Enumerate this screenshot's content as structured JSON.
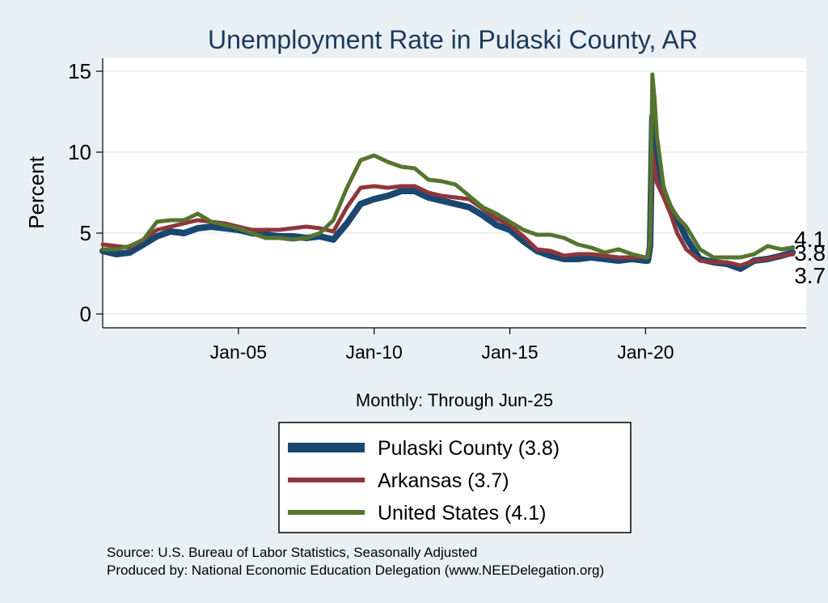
{
  "chart_data": {
    "type": "line",
    "title": "Unemployment Rate in Pulaski  County, AR",
    "ylabel": "Percent",
    "xlabel": "Monthly: Through Jun-25",
    "ylim": [
      0,
      16
    ],
    "yticks": [
      0,
      5,
      10,
      15
    ],
    "xlim": [
      "2000-01",
      "2025-12"
    ],
    "xticks": [
      {
        "date": "2005-01",
        "label": "Jan-05"
      },
      {
        "date": "2010-01",
        "label": "Jan-10"
      },
      {
        "date": "2015-01",
        "label": "Jan-15"
      },
      {
        "date": "2020-01",
        "label": "Jan-20"
      }
    ],
    "grid": true,
    "legend_position": "bottom",
    "series": [
      {
        "name": "Pulaski  County (3.8)",
        "color": "#1a476f",
        "end_label": "3.8",
        "points": [
          [
            "2000-01",
            3.9
          ],
          [
            "2000-07",
            3.7
          ],
          [
            "2001-01",
            3.8
          ],
          [
            "2001-07",
            4.3
          ],
          [
            "2002-01",
            4.8
          ],
          [
            "2002-07",
            5.1
          ],
          [
            "2003-01",
            5.0
          ],
          [
            "2003-07",
            5.3
          ],
          [
            "2004-01",
            5.4
          ],
          [
            "2004-07",
            5.3
          ],
          [
            "2005-01",
            5.2
          ],
          [
            "2005-07",
            5.0
          ],
          [
            "2006-01",
            4.9
          ],
          [
            "2006-07",
            4.8
          ],
          [
            "2007-01",
            4.8
          ],
          [
            "2007-07",
            4.7
          ],
          [
            "2008-01",
            4.8
          ],
          [
            "2008-07",
            4.6
          ],
          [
            "2009-01",
            5.6
          ],
          [
            "2009-07",
            6.8
          ],
          [
            "2010-01",
            7.1
          ],
          [
            "2010-07",
            7.3
          ],
          [
            "2011-01",
            7.6
          ],
          [
            "2011-07",
            7.6
          ],
          [
            "2012-01",
            7.2
          ],
          [
            "2012-07",
            7.0
          ],
          [
            "2013-01",
            6.8
          ],
          [
            "2013-07",
            6.6
          ],
          [
            "2014-01",
            6.1
          ],
          [
            "2014-07",
            5.5
          ],
          [
            "2015-01",
            5.2
          ],
          [
            "2015-07",
            4.5
          ],
          [
            "2016-01",
            3.9
          ],
          [
            "2016-07",
            3.6
          ],
          [
            "2017-01",
            3.4
          ],
          [
            "2017-07",
            3.4
          ],
          [
            "2018-01",
            3.5
          ],
          [
            "2018-07",
            3.4
          ],
          [
            "2019-01",
            3.3
          ],
          [
            "2019-07",
            3.4
          ],
          [
            "2020-01",
            3.3
          ],
          [
            "2020-02",
            3.3
          ],
          [
            "2020-03",
            4.2
          ],
          [
            "2020-04",
            12.2
          ],
          [
            "2020-05",
            10.5
          ],
          [
            "2020-06",
            9.0
          ],
          [
            "2020-09",
            7.6
          ],
          [
            "2020-12",
            6.5
          ],
          [
            "2021-03",
            5.9
          ],
          [
            "2021-07",
            4.7
          ],
          [
            "2022-01",
            3.4
          ],
          [
            "2022-07",
            3.2
          ],
          [
            "2023-01",
            3.1
          ],
          [
            "2023-07",
            2.8
          ],
          [
            "2024-01",
            3.3
          ],
          [
            "2024-07",
            3.4
          ],
          [
            "2025-01",
            3.6
          ],
          [
            "2025-06",
            3.8
          ]
        ]
      },
      {
        "name": "Arkansas (3.7)",
        "color": "#90353b",
        "end_label": "3.7",
        "points": [
          [
            "2000-01",
            4.3
          ],
          [
            "2000-07",
            4.2
          ],
          [
            "2001-01",
            4.1
          ],
          [
            "2001-07",
            4.6
          ],
          [
            "2002-01",
            5.2
          ],
          [
            "2002-07",
            5.4
          ],
          [
            "2003-01",
            5.6
          ],
          [
            "2003-07",
            5.8
          ],
          [
            "2004-01",
            5.7
          ],
          [
            "2004-07",
            5.6
          ],
          [
            "2005-01",
            5.4
          ],
          [
            "2005-07",
            5.2
          ],
          [
            "2006-01",
            5.2
          ],
          [
            "2006-07",
            5.2
          ],
          [
            "2007-01",
            5.3
          ],
          [
            "2007-07",
            5.4
          ],
          [
            "2008-01",
            5.3
          ],
          [
            "2008-07",
            5.1
          ],
          [
            "2009-01",
            6.6
          ],
          [
            "2009-07",
            7.8
          ],
          [
            "2010-01",
            7.9
          ],
          [
            "2010-07",
            7.8
          ],
          [
            "2011-01",
            7.9
          ],
          [
            "2011-07",
            7.9
          ],
          [
            "2012-01",
            7.5
          ],
          [
            "2012-07",
            7.3
          ],
          [
            "2013-01",
            7.2
          ],
          [
            "2013-07",
            7.1
          ],
          [
            "2014-01",
            6.5
          ],
          [
            "2014-07",
            5.9
          ],
          [
            "2015-01",
            5.5
          ],
          [
            "2015-07",
            4.8
          ],
          [
            "2016-01",
            4.0
          ],
          [
            "2016-07",
            3.9
          ],
          [
            "2017-01",
            3.6
          ],
          [
            "2017-07",
            3.7
          ],
          [
            "2018-01",
            3.7
          ],
          [
            "2018-07",
            3.6
          ],
          [
            "2019-01",
            3.5
          ],
          [
            "2019-07",
            3.5
          ],
          [
            "2020-01",
            3.5
          ],
          [
            "2020-02",
            3.5
          ],
          [
            "2020-03",
            4.5
          ],
          [
            "2020-04",
            10.1
          ],
          [
            "2020-05",
            9.0
          ],
          [
            "2020-06",
            8.1
          ],
          [
            "2020-09",
            7.2
          ],
          [
            "2020-12",
            6.2
          ],
          [
            "2021-03",
            5.0
          ],
          [
            "2021-07",
            4.0
          ],
          [
            "2022-01",
            3.3
          ],
          [
            "2022-07",
            3.2
          ],
          [
            "2023-01",
            3.2
          ],
          [
            "2023-07",
            3.0
          ],
          [
            "2024-01",
            3.3
          ],
          [
            "2024-07",
            3.4
          ],
          [
            "2025-01",
            3.6
          ],
          [
            "2025-06",
            3.7
          ]
        ]
      },
      {
        "name": "United States (4.1)",
        "color": "#55752f",
        "end_label": "4.1",
        "points": [
          [
            "2000-01",
            4.0
          ],
          [
            "2000-07",
            4.0
          ],
          [
            "2001-01",
            4.2
          ],
          [
            "2001-07",
            4.6
          ],
          [
            "2002-01",
            5.7
          ],
          [
            "2002-07",
            5.8
          ],
          [
            "2003-01",
            5.8
          ],
          [
            "2003-07",
            6.2
          ],
          [
            "2004-01",
            5.7
          ],
          [
            "2004-07",
            5.5
          ],
          [
            "2005-01",
            5.3
          ],
          [
            "2005-07",
            5.0
          ],
          [
            "2006-01",
            4.7
          ],
          [
            "2006-07",
            4.7
          ],
          [
            "2007-01",
            4.6
          ],
          [
            "2007-07",
            4.7
          ],
          [
            "2008-01",
            5.0
          ],
          [
            "2008-07",
            5.8
          ],
          [
            "2009-01",
            7.8
          ],
          [
            "2009-07",
            9.5
          ],
          [
            "2010-01",
            9.8
          ],
          [
            "2010-07",
            9.4
          ],
          [
            "2011-01",
            9.1
          ],
          [
            "2011-07",
            9.0
          ],
          [
            "2012-01",
            8.3
          ],
          [
            "2012-07",
            8.2
          ],
          [
            "2013-01",
            8.0
          ],
          [
            "2013-07",
            7.3
          ],
          [
            "2014-01",
            6.6
          ],
          [
            "2014-07",
            6.2
          ],
          [
            "2015-01",
            5.7
          ],
          [
            "2015-07",
            5.2
          ],
          [
            "2016-01",
            4.9
          ],
          [
            "2016-07",
            4.9
          ],
          [
            "2017-01",
            4.7
          ],
          [
            "2017-07",
            4.3
          ],
          [
            "2018-01",
            4.1
          ],
          [
            "2018-07",
            3.8
          ],
          [
            "2019-01",
            4.0
          ],
          [
            "2019-07",
            3.7
          ],
          [
            "2020-01",
            3.5
          ],
          [
            "2020-02",
            3.5
          ],
          [
            "2020-03",
            4.4
          ],
          [
            "2020-04",
            14.8
          ],
          [
            "2020-05",
            13.2
          ],
          [
            "2020-06",
            11.0
          ],
          [
            "2020-09",
            7.8
          ],
          [
            "2020-12",
            6.7
          ],
          [
            "2021-03",
            6.0
          ],
          [
            "2021-07",
            5.4
          ],
          [
            "2022-01",
            4.0
          ],
          [
            "2022-07",
            3.5
          ],
          [
            "2023-01",
            3.5
          ],
          [
            "2023-07",
            3.5
          ],
          [
            "2024-01",
            3.7
          ],
          [
            "2024-07",
            4.2
          ],
          [
            "2025-01",
            4.0
          ],
          [
            "2025-06",
            4.1
          ]
        ]
      }
    ],
    "source_lines": [
      "Source: U.S. Bureau of Labor Statistics, Seasonally Adjusted",
      "Produced by: National Economic Education Delegation (www.NEEDelegation.org)"
    ]
  }
}
